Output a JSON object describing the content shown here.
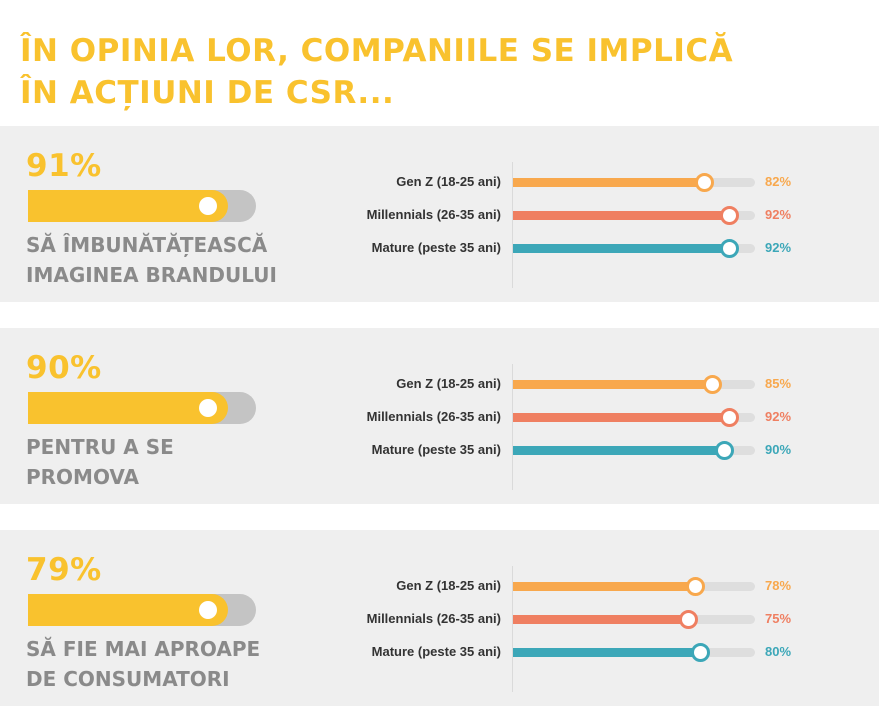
{
  "title": {
    "line1": "ÎN OPINIA LOR, COMPANIILE SE IMPLICĂ",
    "line2": "ÎN ACȚIUNI DE CSR..."
  },
  "colors": {
    "accent": "#f9c22e",
    "gen_z": "#f8a84d",
    "millennials": "#ef7f61",
    "mature": "#3ca7b8"
  },
  "chart_data": [
    {
      "type": "bar",
      "overall_percent": "91%",
      "overall_value": 91,
      "statement_lines": [
        "SĂ ÎMBUNĂTĂȚEASCĂ",
        "IMAGINEA BRANDULUI"
      ],
      "categories": [
        "Gen Z (18-25 ani)",
        "Millennials (26-35 ani)",
        "Mature (peste 35 ani)"
      ],
      "values": [
        82,
        92,
        92
      ],
      "value_labels": [
        "82%",
        "92%",
        "92%"
      ],
      "xlim": [
        0,
        100
      ]
    },
    {
      "type": "bar",
      "overall_percent": "90%",
      "overall_value": 90,
      "statement_lines": [
        "PENTRU A SE",
        "PROMOVA"
      ],
      "categories": [
        "Gen Z (18-25 ani)",
        "Millennials (26-35 ani)",
        "Mature (peste 35 ani)"
      ],
      "values": [
        85,
        92,
        90
      ],
      "value_labels": [
        "85%",
        "92%",
        "90%"
      ],
      "xlim": [
        0,
        100
      ]
    },
    {
      "type": "bar",
      "overall_percent": "79%",
      "overall_value": 79,
      "statement_lines": [
        "SĂ FIE MAI APROAPE",
        "DE CONSUMATORI"
      ],
      "categories": [
        "Gen Z (18-25 ani)",
        "Millennials (26-35 ani)",
        "Mature (peste 35 ani)"
      ],
      "values": [
        78,
        75,
        80
      ],
      "value_labels": [
        "78%",
        "75%",
        "80%"
      ],
      "xlim": [
        0,
        100
      ]
    }
  ]
}
